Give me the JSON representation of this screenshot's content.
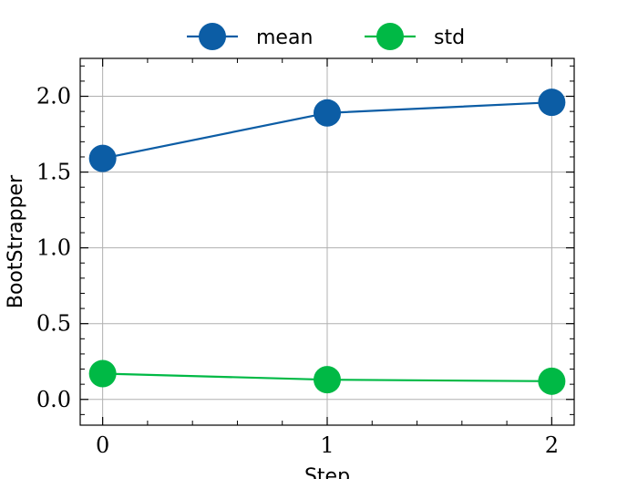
{
  "chart_data": {
    "type": "line",
    "x": [
      0,
      1,
      2
    ],
    "xlabel": "Step",
    "ylabel": "BootStrapper",
    "xticks": [
      "0",
      "1",
      "2"
    ],
    "yticks": [
      "0.0",
      "0.5",
      "1.0",
      "1.5",
      "2.0"
    ],
    "xlim": [
      -0.1,
      2.1
    ],
    "ylim": [
      -0.17,
      2.25
    ],
    "grid": true,
    "legend_position": "top-center",
    "series": [
      {
        "name": "mean",
        "color": "#0C5DA5",
        "values": [
          1.59,
          1.89,
          1.96
        ]
      },
      {
        "name": "std",
        "color": "#00B945",
        "values": [
          0.17,
          0.13,
          0.12
        ]
      }
    ]
  }
}
